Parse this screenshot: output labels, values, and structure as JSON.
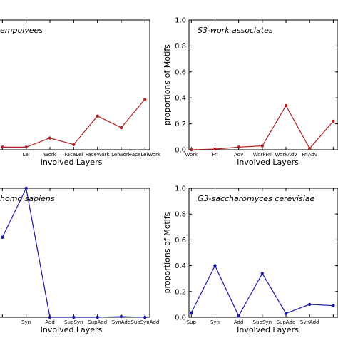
{
  "chart_data": [
    {
      "type": "line",
      "title": "empolyees",
      "xlabel": "Involved Layers",
      "ylabel": "",
      "categories": [
        "",
        "Lei",
        "Work",
        "FaceLei",
        "FaceWork",
        "LeiWork",
        "FaceLeiWork"
      ],
      "y_tick_labels": [],
      "ylim": [
        0,
        1
      ],
      "series": [
        {
          "color": "#b22222",
          "values": [
            0.02,
            0.02,
            0.09,
            0.04,
            0.26,
            0.17,
            0.39
          ]
        }
      ]
    },
    {
      "type": "line",
      "title": "S3-work associates",
      "xlabel": "Involved Layers",
      "ylabel": "proportions of Motifs",
      "categories": [
        "Work",
        "Fri",
        "Adv",
        "WorkFri",
        "WorkAdv",
        "FriAdv",
        ""
      ],
      "y_tick_labels": [
        "0.0",
        "0.2",
        "0.4",
        "0.6",
        "0.8",
        "1.0"
      ],
      "ylim": [
        0,
        1
      ],
      "series": [
        {
          "color": "#b22222",
          "values": [
            0.0,
            0.005,
            0.02,
            0.03,
            0.34,
            0.01,
            0.22
          ]
        }
      ]
    },
    {
      "type": "line",
      "title": "homo sapiens",
      "xlabel": "Involved Layers",
      "ylabel": "",
      "categories": [
        "",
        "Syn",
        "Add",
        "SupSyn",
        "SupAdd",
        "SynAdd",
        "SupSynAdd"
      ],
      "y_tick_labels": [],
      "ylim": [
        0,
        1
      ],
      "series": [
        {
          "color": "#1a1aa6",
          "values": [
            0.62,
            1.0,
            0.0,
            0.0,
            0.0,
            0.005,
            0.0
          ]
        }
      ]
    },
    {
      "type": "line",
      "title": "G3-saccharomyces cerevisiae",
      "xlabel": "Involved Layers",
      "ylabel": "proportions of Motifs",
      "categories": [
        "Sup",
        "Syn",
        "Add",
        "SupSyn",
        "SupAdd",
        "SynAdd",
        ""
      ],
      "y_tick_labels": [
        "0.0",
        "0.2",
        "0.4",
        "0.6",
        "0.8",
        "1.0"
      ],
      "ylim": [
        0,
        1
      ],
      "series": [
        {
          "color": "#1a1aa6",
          "values": [
            0.035,
            0.4,
            0.01,
            0.34,
            0.03,
            0.1,
            0.09
          ]
        }
      ]
    }
  ]
}
